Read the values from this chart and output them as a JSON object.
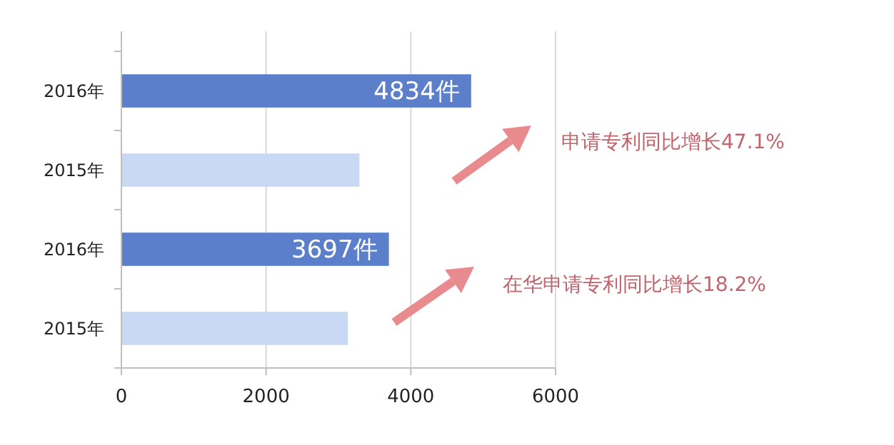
{
  "chart_data": {
    "type": "bar",
    "orientation": "horizontal",
    "categories": [
      "2016年",
      "2015年",
      "2016年",
      "2015年"
    ],
    "values": [
      4834,
      3290,
      3697,
      3130
    ],
    "colors": [
      "#5b7fcb",
      "#c9d8f3",
      "#5b7fcb",
      "#c9d8f3"
    ],
    "value_labels": [
      "4834件",
      null,
      "3697件",
      null
    ],
    "xlim": [
      0,
      6000
    ],
    "xticks": [
      0,
      2000,
      4000,
      6000
    ],
    "grid": "x",
    "annotations": [
      "申请专利同比增长47.1%",
      "在华申请专利同比增长18.2%"
    ]
  }
}
